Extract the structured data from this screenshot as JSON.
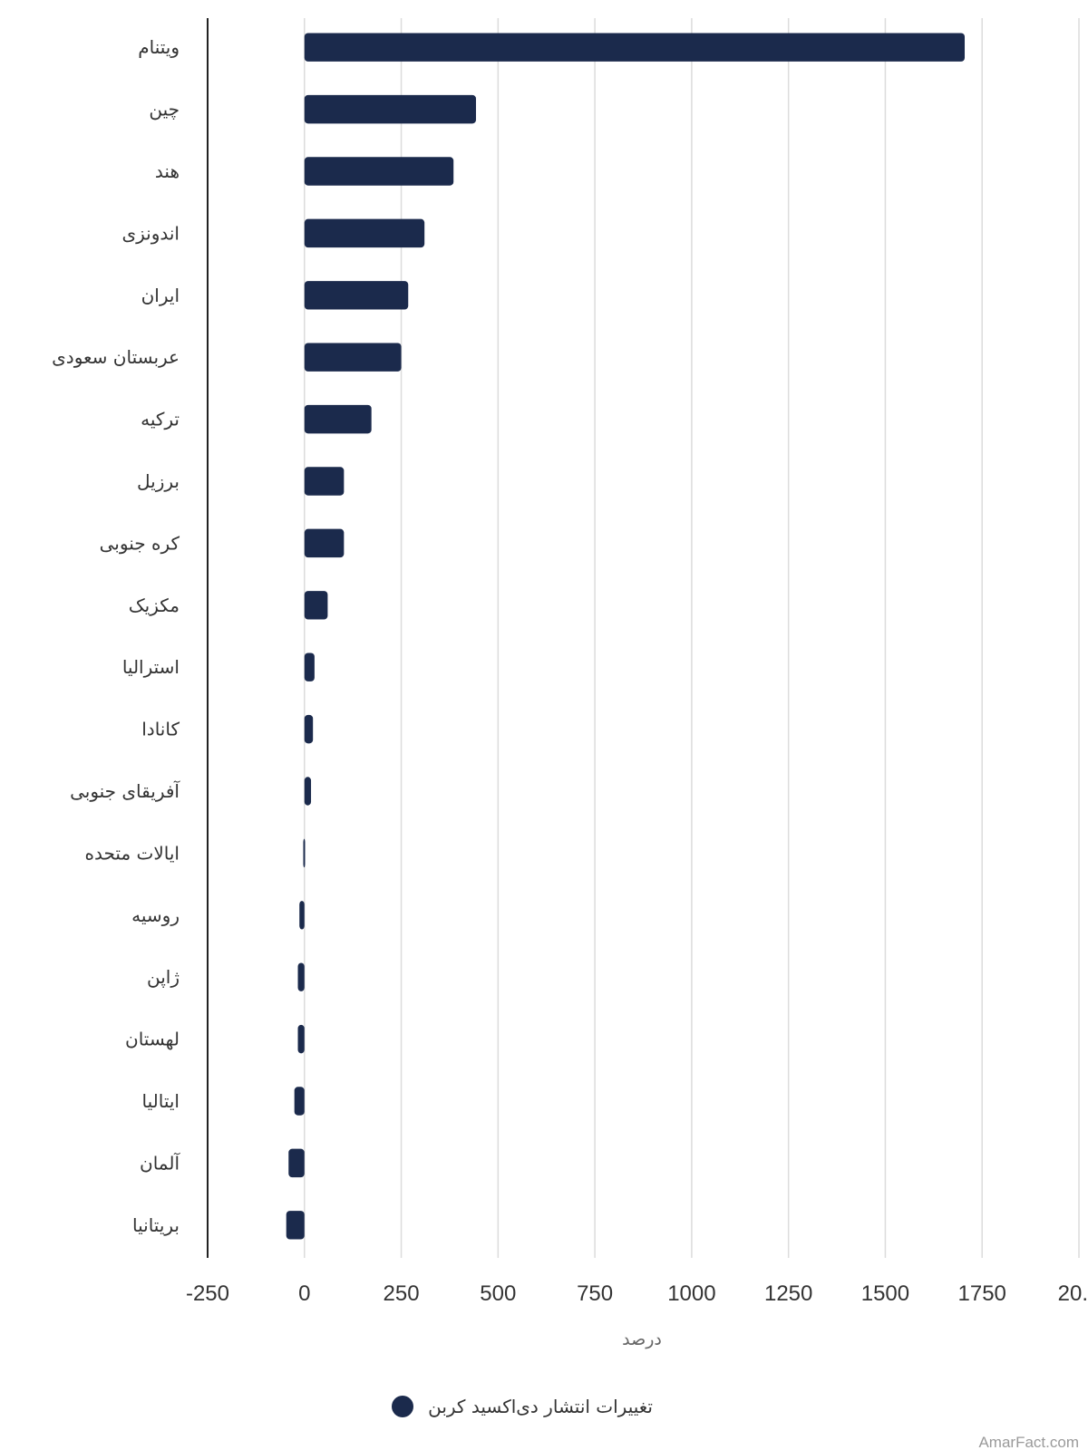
{
  "chart_data": {
    "type": "bar",
    "orientation": "horizontal",
    "categories": [
      "ویتنام",
      "چین",
      "هند",
      "اندونزی",
      "ایران",
      "عربستان سعودی",
      "ترکیه",
      "برزیل",
      "کره جنوبی",
      "مکزیک",
      "استرالیا",
      "کانادا",
      "آفریقای جنوبی",
      "ایالات متحده",
      "روسیه",
      "ژاپن",
      "لهستان",
      "ایتالیا",
      "آلمان",
      "بریتانیا"
    ],
    "series": [
      {
        "name": "تغییرات انتشار دی‌اکسید کربن",
        "values": [
          1705,
          443,
          385,
          310,
          268,
          250,
          173,
          102,
          102,
          60,
          26,
          22,
          17,
          -3,
          -13,
          -17,
          -17,
          -26,
          -41,
          -47
        ]
      }
    ],
    "xlabel": "درصد",
    "ylabel": "",
    "xlim": [
      -250,
      2000
    ],
    "xticks": [
      "-250",
      "0",
      "250",
      "500",
      "750",
      "1000",
      "1250",
      "1500",
      "1750",
      "20..."
    ],
    "grid": true,
    "legend": "bottom-center",
    "bar_color": "#1b2a4c"
  },
  "watermark": "AmarFact.com"
}
